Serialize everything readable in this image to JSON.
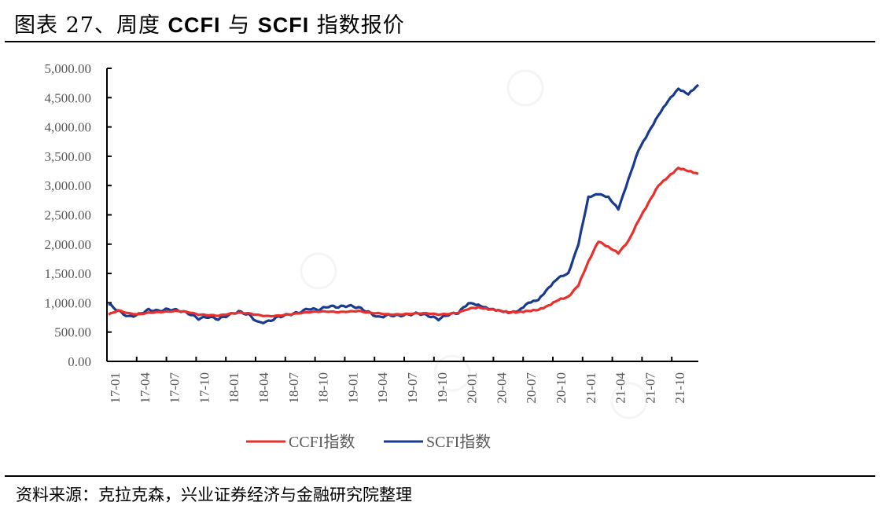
{
  "header": {
    "prefix": "图表 27、周度 ",
    "bold1": "CCFI",
    "mid": " 与 ",
    "bold2": "SCFI",
    "suffix": " 指数报价"
  },
  "footer": {
    "source": "资料来源：克拉克森，兴业证券经济与金融研究院整理"
  },
  "colors": {
    "ccfi": "#e8302e",
    "scfi": "#1a3a8f",
    "axis": "#000000",
    "tick_text": "#595959"
  },
  "chart_data": {
    "type": "line",
    "title": "周度 CCFI 与 SCFI 指数报价",
    "xlabel": "",
    "ylabel": "",
    "ylim": [
      0,
      5000
    ],
    "yticks": [
      "0.00",
      "500.00",
      "1,000.00",
      "1,500.00",
      "2,000.00",
      "2,500.00",
      "3,000.00",
      "3,500.00",
      "4,000.00",
      "4,500.00",
      "5,000.00"
    ],
    "xticks": [
      "17-01",
      "17-04",
      "17-07",
      "17-10",
      "18-01",
      "18-04",
      "18-07",
      "18-10",
      "19-01",
      "19-04",
      "19-07",
      "19-10",
      "20-01",
      "20-04",
      "20-07",
      "20-10",
      "21-01",
      "21-04",
      "21-07",
      "21-10"
    ],
    "grid": false,
    "legend_position": "bottom",
    "x": [
      "17-01",
      "17-02",
      "17-03",
      "17-04",
      "17-05",
      "17-06",
      "17-07",
      "17-08",
      "17-09",
      "17-10",
      "17-11",
      "17-12",
      "18-01",
      "18-02",
      "18-03",
      "18-04",
      "18-05",
      "18-06",
      "18-07",
      "18-08",
      "18-09",
      "18-10",
      "18-11",
      "18-12",
      "19-01",
      "19-02",
      "19-03",
      "19-04",
      "19-05",
      "19-06",
      "19-07",
      "19-08",
      "19-09",
      "19-10",
      "19-11",
      "19-12",
      "20-01",
      "20-02",
      "20-03",
      "20-04",
      "20-05",
      "20-06",
      "20-07",
      "20-08",
      "20-09",
      "20-10",
      "20-11",
      "20-12",
      "21-01",
      "21-02",
      "21-03",
      "21-04",
      "21-05",
      "21-06",
      "21-07",
      "21-08",
      "21-09",
      "21-10",
      "21-11",
      "21-12"
    ],
    "series": [
      {
        "name": "CCFI指数",
        "color": "#e8302e",
        "values": [
          800,
          870,
          820,
          800,
          830,
          840,
          850,
          860,
          840,
          800,
          790,
          780,
          810,
          830,
          820,
          790,
          770,
          780,
          800,
          820,
          840,
          850,
          850,
          840,
          850,
          860,
          830,
          820,
          800,
          800,
          810,
          820,
          820,
          800,
          810,
          830,
          900,
          920,
          890,
          870,
          840,
          840,
          860,
          880,
          950,
          1050,
          1100,
          1300,
          1700,
          2050,
          1950,
          1850,
          2050,
          2400,
          2700,
          3000,
          3150,
          3300,
          3250,
          3200
        ]
      },
      {
        "name": "SCFI指数",
        "color": "#1a3a8f",
        "values": [
          980,
          860,
          760,
          800,
          880,
          860,
          890,
          870,
          820,
          730,
          760,
          720,
          790,
          850,
          800,
          660,
          680,
          760,
          800,
          830,
          900,
          880,
          940,
          930,
          950,
          920,
          840,
          750,
          790,
          780,
          800,
          820,
          780,
          720,
          800,
          830,
          1000,
          960,
          900,
          870,
          830,
          860,
          1000,
          1050,
          1250,
          1430,
          1500,
          2000,
          2800,
          2860,
          2800,
          2600,
          3100,
          3600,
          3900,
          4200,
          4450,
          4650,
          4560,
          4720
        ]
      }
    ]
  },
  "legend": [
    {
      "label": "CCFI指数",
      "color": "#e8302e"
    },
    {
      "label": "SCFI指数",
      "color": "#1a3a8f"
    }
  ]
}
